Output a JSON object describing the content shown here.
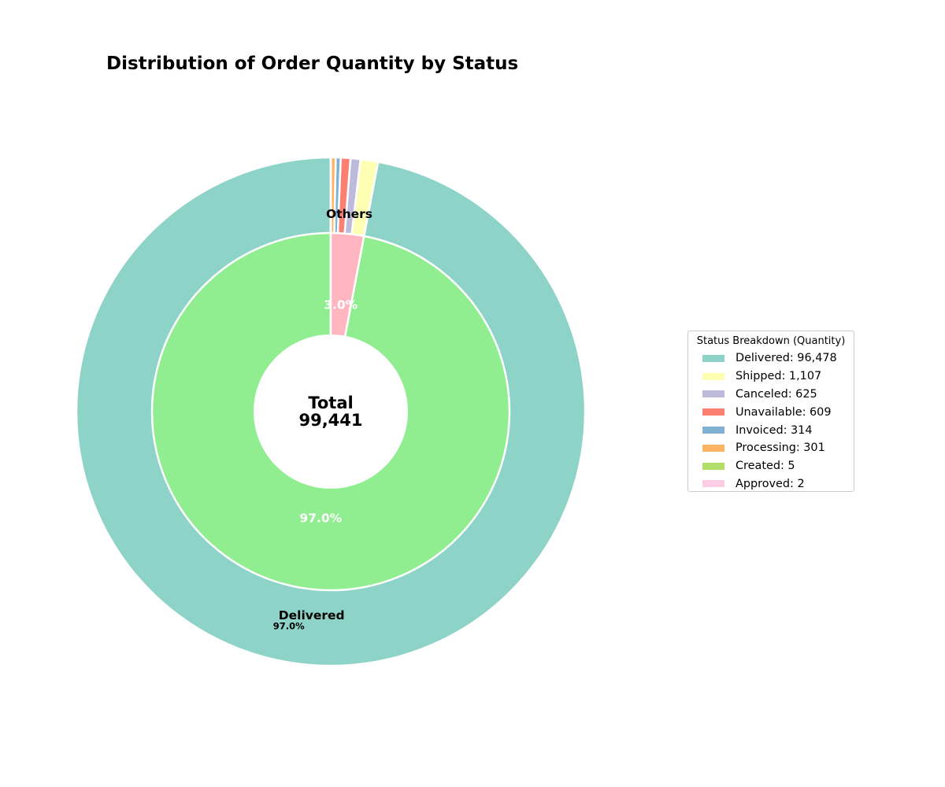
{
  "chart_data": {
    "type": "pie",
    "title": "Distribution of Order Quantity by Status",
    "center_label": {
      "line1": "Total",
      "line2": "99,441"
    },
    "total": 99441,
    "outer_ring": {
      "categories": [
        "Delivered",
        "Shipped",
        "Canceled",
        "Unavailable",
        "Invoiced",
        "Processing",
        "Created",
        "Approved"
      ],
      "values": [
        96478,
        1107,
        625,
        609,
        314,
        301,
        5,
        2
      ],
      "colors": [
        "#8dd3c7",
        "#ffffb3",
        "#bebada",
        "#fb8072",
        "#80b1d3",
        "#fdb462",
        "#b3de69",
        "#fccde5"
      ],
      "slice_labels": [
        {
          "category": "Delivered",
          "label": "Delivered",
          "percent": "97.0%"
        }
      ]
    },
    "inner_ring": {
      "categories": [
        "Delivered",
        "Others"
      ],
      "values": [
        96478,
        2963
      ],
      "colors": [
        "#90ee90",
        "#ffb6c1"
      ],
      "percent_labels": [
        "97.0%",
        "3.0%"
      ],
      "outer_labels": [
        "",
        "Others"
      ]
    },
    "legend": {
      "title": "Status Breakdown (Quantity)",
      "placement": "right",
      "entries": [
        {
          "label": "Delivered: 96,478",
          "color": "#8dd3c7"
        },
        {
          "label": "Shipped: 1,107",
          "color": "#ffffb3"
        },
        {
          "label": "Canceled: 625",
          "color": "#bebada"
        },
        {
          "label": "Unavailable: 609",
          "color": "#fb8072"
        },
        {
          "label": "Invoiced: 314",
          "color": "#80b1d3"
        },
        {
          "label": "Processing: 301",
          "color": "#fdb462"
        },
        {
          "label": "Created: 5",
          "color": "#b3de69"
        },
        {
          "label": "Approved: 2",
          "color": "#fccde5"
        }
      ]
    }
  }
}
